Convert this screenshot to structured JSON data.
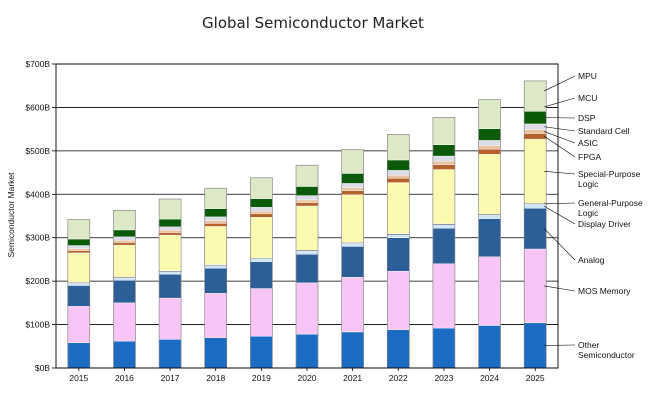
{
  "chart_data": {
    "type": "bar",
    "stacked": true,
    "title": "Global Semiconductor Market",
    "ylabel": "Semiconductor Market",
    "xlabel": "",
    "ylim": [
      0,
      700
    ],
    "y_ticks": [
      0,
      100,
      200,
      300,
      400,
      500,
      600,
      700
    ],
    "y_tick_labels": [
      "$0B",
      "$100B",
      "$200B",
      "$300B",
      "$400B",
      "$500B",
      "$600B",
      "$700B"
    ],
    "grid": true,
    "legend_position": "right",
    "categories": [
      "2015",
      "2016",
      "2017",
      "2018",
      "2019",
      "2020",
      "2021",
      "2022",
      "2023",
      "2024",
      "2025"
    ],
    "series": [
      {
        "name": "Other Semiconductor",
        "color": "#1c6cc4",
        "values": [
          58,
          62,
          66,
          70,
          73,
          78,
          83,
          88,
          92,
          98,
          104
        ]
      },
      {
        "name": "MOS Memory",
        "color": "#f7c6f7",
        "values": [
          84,
          88,
          95,
          102,
          110,
          118,
          126,
          135,
          148,
          158,
          170
        ]
      },
      {
        "name": "Analog",
        "color": "#2c5e98",
        "values": [
          48,
          52,
          55,
          58,
          62,
          66,
          71,
          77,
          82,
          88,
          94
        ]
      },
      {
        "name": "Display Driver",
        "color": "#cfe4f5",
        "values": [
          5,
          5,
          6,
          6,
          6,
          7,
          7,
          7,
          8,
          8,
          9
        ]
      },
      {
        "name": "General-Purpose Logic",
        "color": "#1a2a5a",
        "values": [
          2,
          2,
          2,
          2,
          2,
          2,
          2,
          2,
          2,
          2,
          2
        ]
      },
      {
        "name": "Special-Purpose Logic",
        "color": "#fbfab0",
        "values": [
          68,
          74,
          82,
          88,
          94,
          102,
          110,
          118,
          125,
          138,
          148
        ]
      },
      {
        "name": "FPGA",
        "color": "#b5612c",
        "values": [
          5,
          6,
          6,
          7,
          8,
          8,
          9,
          10,
          11,
          12,
          13
        ]
      },
      {
        "name": "ASIC",
        "color": "#e9c2a0",
        "values": [
          5,
          5,
          5,
          6,
          6,
          6,
          7,
          7,
          8,
          8,
          9
        ]
      },
      {
        "name": "Standard Cell",
        "color": "#dcdce8",
        "values": [
          7,
          8,
          8,
          9,
          9,
          10,
          10,
          11,
          12,
          12,
          13
        ]
      },
      {
        "name": "DSP",
        "color": "#0a5a0a",
        "values": [
          15,
          16,
          18,
          19,
          20,
          21,
          23,
          24,
          26,
          27,
          29
        ]
      },
      {
        "name": "MCU",
        "color": "#dde8c6",
        "values": [
          45,
          45,
          46,
          47,
          48,
          49,
          55,
          59,
          63,
          67,
          70
        ]
      },
      {
        "name": "MPU",
        "color": "#dde8c6",
        "values": [
          0,
          0,
          0,
          0,
          0,
          0,
          0,
          0,
          0,
          0,
          0
        ]
      }
    ],
    "legend": [
      {
        "label_lines": [
          "MPU"
        ]
      },
      {
        "label_lines": [
          "MCU"
        ]
      },
      {
        "label_lines": [
          "DSP"
        ]
      },
      {
        "label_lines": [
          "Standard Cell"
        ]
      },
      {
        "label_lines": [
          "ASIC"
        ]
      },
      {
        "label_lines": [
          "FPGA"
        ]
      },
      {
        "label_lines": [
          "Special-Purpose",
          "Logic"
        ]
      },
      {
        "label_lines": [
          "General-Purpose",
          "Logic"
        ]
      },
      {
        "label_lines": [
          "Display Driver"
        ]
      },
      {
        "label_lines": [
          "Analog"
        ]
      },
      {
        "label_lines": [
          "MOS Memory"
        ]
      },
      {
        "label_lines": [
          "Other",
          "Semiconductor"
        ]
      }
    ]
  }
}
